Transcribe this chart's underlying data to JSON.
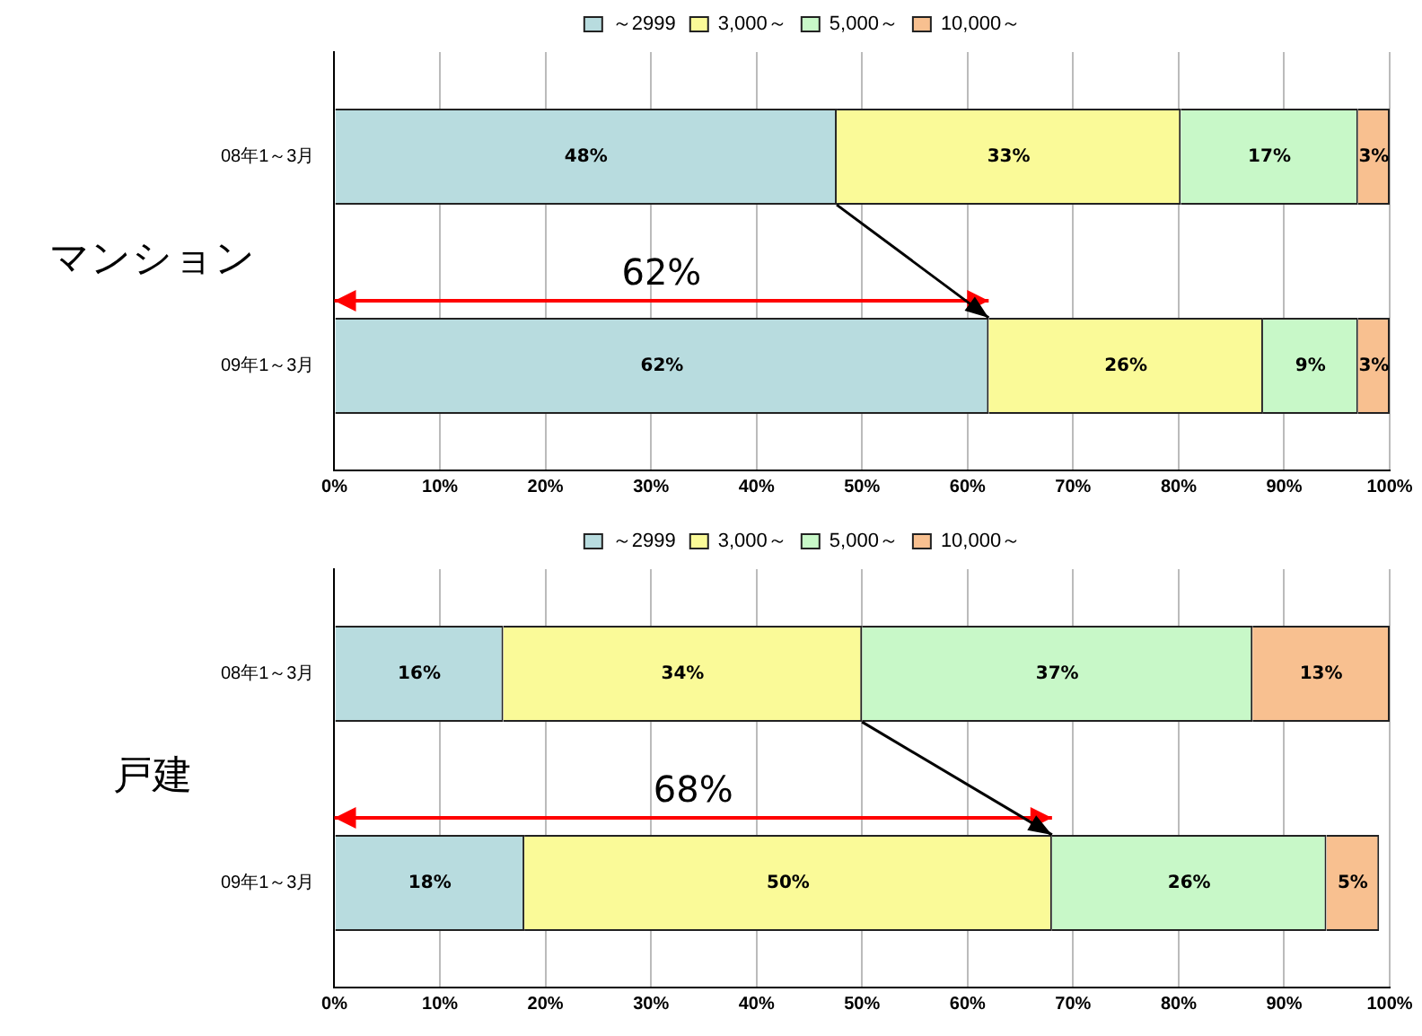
{
  "chart_data": [
    {
      "type": "bar",
      "orientation": "horizontal",
      "stacked": true,
      "ylabel": "マンション",
      "categories": [
        "08年1～3月",
        "09年1～3月"
      ],
      "series": [
        {
          "name": "～2999",
          "color": "#b8dcdf",
          "values": [
            47.6,
            62
          ],
          "value_labels": [
            "48%",
            "62%"
          ]
        },
        {
          "name": "3,000～",
          "color": "#fafa98",
          "values": [
            32.6,
            26
          ],
          "value_labels": [
            "33%",
            "26%"
          ]
        },
        {
          "name": "5,000～",
          "color": "#c8f8c8",
          "values": [
            16.8,
            9
          ],
          "value_labels": [
            "17%",
            "9%"
          ]
        },
        {
          "name": "10,000～",
          "color": "#f8c090",
          "values": [
            3,
            3
          ],
          "value_labels": [
            "3%",
            "3%"
          ]
        }
      ],
      "xlim": [
        0,
        100
      ],
      "xticks": [
        {
          "value": 0,
          "label": "0%"
        },
        {
          "value": 10,
          "label": "10%"
        },
        {
          "value": 20,
          "label": "20%"
        },
        {
          "value": 30,
          "label": "30%"
        },
        {
          "value": 40,
          "label": "40%"
        },
        {
          "value": 50,
          "label": "50%"
        },
        {
          "value": 60,
          "label": "60%"
        },
        {
          "value": 70,
          "label": "70%"
        },
        {
          "value": 80,
          "label": "80%"
        },
        {
          "value": 90,
          "label": "90%"
        },
        {
          "value": 100,
          "label": "100%"
        }
      ],
      "grid": "x",
      "legend": "top",
      "annotations": [
        "62%"
      ]
    },
    {
      "type": "bar",
      "orientation": "horizontal",
      "stacked": true,
      "ylabel": "戸建",
      "categories": [
        "08年1～3月",
        "09年1～3月"
      ],
      "series": [
        {
          "name": "～2999",
          "color": "#b8dcdf",
          "values": [
            16,
            18
          ],
          "value_labels": [
            "16%",
            "18%"
          ]
        },
        {
          "name": "3,000～",
          "color": "#fafa98",
          "values": [
            34,
            50
          ],
          "value_labels": [
            "34%",
            "50%"
          ]
        },
        {
          "name": "5,000～",
          "color": "#c8f8c8",
          "values": [
            37,
            26
          ],
          "value_labels": [
            "37%",
            "26%"
          ]
        },
        {
          "name": "10,000～",
          "color": "#f8c090",
          "values": [
            13,
            5
          ],
          "value_labels": [
            "13%",
            "5%"
          ]
        }
      ],
      "xlim": [
        0,
        100
      ],
      "xticks": [
        {
          "value": 0,
          "label": "0%"
        },
        {
          "value": 10,
          "label": "10%"
        },
        {
          "value": 20,
          "label": "20%"
        },
        {
          "value": 30,
          "label": "30%"
        },
        {
          "value": 40,
          "label": "40%"
        },
        {
          "value": 50,
          "label": "50%"
        },
        {
          "value": 60,
          "label": "60%"
        },
        {
          "value": 70,
          "label": "70%"
        },
        {
          "value": 80,
          "label": "80%"
        },
        {
          "value": 90,
          "label": "90%"
        },
        {
          "value": 100,
          "label": "100%"
        }
      ],
      "grid": "x",
      "legend": "top",
      "annotations": [
        "68%"
      ]
    }
  ]
}
